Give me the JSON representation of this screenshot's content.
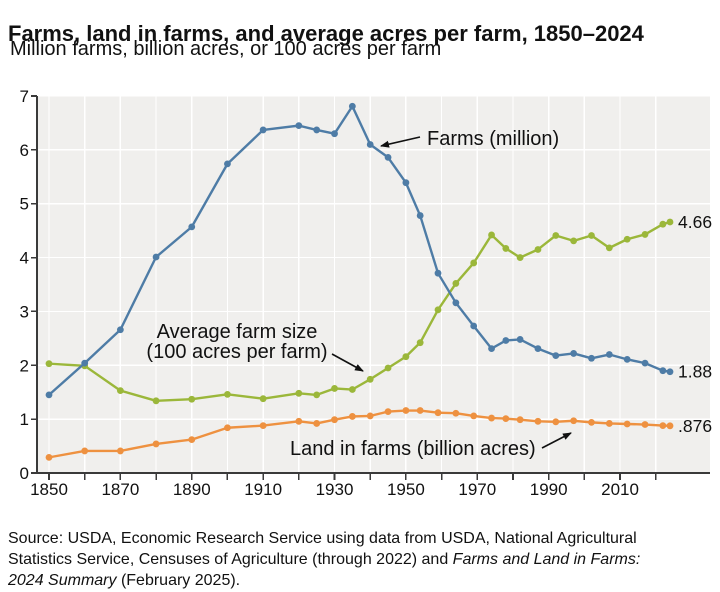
{
  "header": {
    "title": "Farms, land in farms, and average acres per farm, 1850–2024",
    "subtitle": "Million farms, billion acres, or 100 acres per farm"
  },
  "chart_data": {
    "type": "line",
    "x": [
      1850,
      1860,
      1870,
      1880,
      1890,
      1900,
      1910,
      1920,
      1925,
      1930,
      1935,
      1940,
      1945,
      1950,
      1954,
      1959,
      1964,
      1969,
      1974,
      1978,
      1982,
      1987,
      1992,
      1997,
      2002,
      2007,
      2012,
      2017,
      2022,
      2024
    ],
    "series": [
      {
        "name": "Farms (million)",
        "color": "#4e7ca6",
        "end_label": "1.88",
        "values": [
          1.45,
          2.04,
          2.66,
          4.01,
          4.57,
          5.74,
          6.37,
          6.45,
          6.37,
          6.3,
          6.81,
          6.1,
          5.86,
          5.39,
          4.78,
          3.71,
          3.16,
          2.73,
          2.31,
          2.46,
          2.48,
          2.31,
          2.18,
          2.22,
          2.13,
          2.2,
          2.11,
          2.04,
          1.9,
          1.88
        ]
      },
      {
        "name": "Land in farms (billion acres)",
        "color": "#ee9140",
        "end_label": ".876",
        "values": [
          0.29,
          0.41,
          0.41,
          0.54,
          0.62,
          0.84,
          0.88,
          0.96,
          0.92,
          0.99,
          1.05,
          1.06,
          1.14,
          1.16,
          1.16,
          1.12,
          1.11,
          1.06,
          1.02,
          1.01,
          0.99,
          0.96,
          0.95,
          0.97,
          0.94,
          0.92,
          0.91,
          0.9,
          0.88,
          0.876
        ]
      },
      {
        "name": "Average farm size (100 acres per farm)",
        "color": "#9bb73a",
        "end_label": "4.66",
        "values": [
          2.03,
          1.99,
          1.53,
          1.34,
          1.37,
          1.46,
          1.38,
          1.48,
          1.45,
          1.57,
          1.55,
          1.74,
          1.95,
          2.16,
          2.42,
          3.03,
          3.52,
          3.9,
          4.42,
          4.17,
          4.0,
          4.15,
          4.41,
          4.31,
          4.41,
          4.18,
          4.34,
          4.43,
          4.62,
          4.66
        ]
      }
    ],
    "xlim": [
      1850,
      2024
    ],
    "ylim": [
      0,
      7
    ],
    "yticks": [
      0,
      1,
      2,
      3,
      4,
      5,
      6,
      7
    ],
    "xticks_labeled": [
      1850,
      1870,
      1890,
      1910,
      1930,
      1950,
      1970,
      1990,
      2010
    ],
    "xticks_minor": [
      1860,
      1880,
      1900,
      1920,
      1940,
      1960,
      1980,
      2000,
      2020
    ],
    "grid": true,
    "plot_background": "#f0efed",
    "gridline_color": "#ffffff",
    "axis_color": "#3a3a3a",
    "legend_position": "inline-annotations"
  },
  "annotations": {
    "farms_label": "Farms (million)",
    "avg_size_line1": "Average farm size",
    "avg_size_line2": "(100 acres per farm)",
    "land_label": "Land in farms (billion acres)"
  },
  "source": {
    "parts": [
      {
        "text": "Source: USDA, Economic Research Service using data from USDA, National Agricultural",
        "italic": false,
        "break_after": true
      },
      {
        "text": "Statistics Service, Censuses of Agriculture (through 2022) and ",
        "italic": false,
        "break_after": false
      },
      {
        "text": "Farms and Land in Farms:",
        "italic": true,
        "break_after": true
      },
      {
        "text": "2024 Summary",
        "italic": true,
        "break_after": false
      },
      {
        "text": " (February 2025).",
        "italic": false,
        "break_after": false
      }
    ]
  }
}
